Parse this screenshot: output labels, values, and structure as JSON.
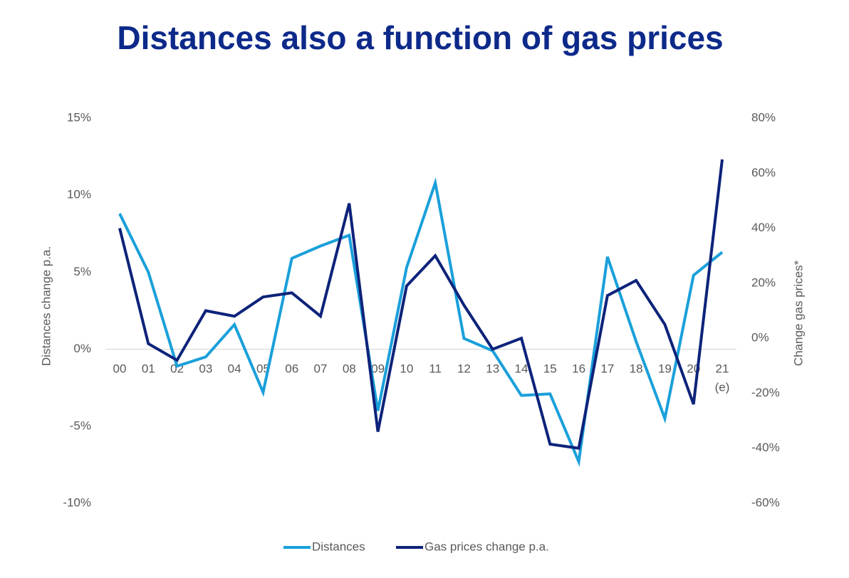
{
  "chart_data": {
    "type": "line",
    "title": "Distances also a function of gas prices",
    "y_label": "Distances change p.a.",
    "y2_label": "Change gas prices*",
    "categories": [
      "00",
      "01",
      "02",
      "03",
      "04",
      "05",
      "06",
      "07",
      "08",
      "09",
      "10",
      "11",
      "12",
      "13",
      "14",
      "15",
      "16",
      "17",
      "18",
      "19",
      "20",
      "21"
    ],
    "category_note": "(e)",
    "series": [
      {
        "name": "Distances",
        "color": "#1aa0da",
        "axis": "y",
        "values": [
          8.8,
          5.0,
          -1.1,
          -0.5,
          1.6,
          -2.8,
          5.9,
          6.7,
          7.4,
          -4.0,
          5.3,
          10.8,
          0.7,
          -0.1,
          -3.0,
          -2.9,
          -7.3,
          6.0,
          0.5,
          -4.5,
          4.8,
          6.3
        ]
      },
      {
        "name": "Gas prices change p.a.",
        "color": "#0d237a",
        "axis": "y2",
        "values": [
          40,
          -2,
          -8,
          10,
          8,
          15,
          16.5,
          8,
          49,
          -34,
          19,
          30,
          12,
          -4,
          0,
          -38.5,
          -40,
          15.5,
          21,
          5,
          -24,
          65
        ]
      }
    ],
    "ylim": [
      -10,
      15
    ],
    "yticks": [
      {
        "value": -10,
        "label": "-10%"
      },
      {
        "value": -5,
        "label": "-5%"
      },
      {
        "value": 0,
        "label": "0%"
      },
      {
        "value": 5,
        "label": "5%"
      },
      {
        "value": 10,
        "label": "10%"
      },
      {
        "value": 15,
        "label": "15%"
      }
    ],
    "y2lim": [
      -60,
      80
    ],
    "y2ticks": [
      {
        "value": -60,
        "label": "-60%"
      },
      {
        "value": -40,
        "label": "-40%"
      },
      {
        "value": -20,
        "label": "-20%"
      },
      {
        "value": 0,
        "label": "0%"
      },
      {
        "value": 20,
        "label": "20%"
      },
      {
        "value": 40,
        "label": "40%"
      },
      {
        "value": 60,
        "label": "60%"
      },
      {
        "value": 80,
        "label": "80%"
      }
    ],
    "zero_line": true,
    "legend": "bottom"
  }
}
